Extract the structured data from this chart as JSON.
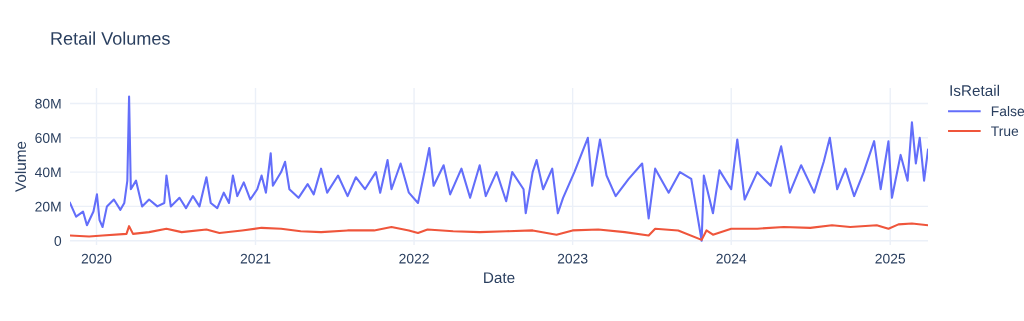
{
  "chart_data": {
    "type": "line",
    "title": "Retail Volumes",
    "xlabel": "Date",
    "ylabel": "Volume",
    "legend_title": "IsRetail",
    "legend": "top right",
    "grid": true,
    "xlim": [
      "2019-11-01",
      "2025-03-29"
    ],
    "xticks": [
      "2020",
      "2021",
      "2022",
      "2023",
      "2024",
      "2025"
    ],
    "ylim": [
      -2500000,
      89000000
    ],
    "yticks": [
      {
        "value": 0,
        "label": "0"
      },
      {
        "value": 20000000,
        "label": "20M"
      },
      {
        "value": 40000000,
        "label": "40M"
      },
      {
        "value": 60000000,
        "label": "60M"
      },
      {
        "value": 80000000,
        "label": "80M"
      }
    ],
    "series": [
      {
        "name": "False",
        "color": "#636efa",
        "x": [
          "2019-11-01",
          "2019-11-15",
          "2019-12-01",
          "2019-12-10",
          "2019-12-25",
          "2020-01-02",
          "2020-01-08",
          "2020-01-15",
          "2020-01-25",
          "2020-02-10",
          "2020-02-25",
          "2020-03-05",
          "2020-03-12",
          "2020-03-16",
          "2020-03-20",
          "2020-04-01",
          "2020-04-15",
          "2020-05-01",
          "2020-05-20",
          "2020-06-05",
          "2020-06-10",
          "2020-06-20",
          "2020-07-10",
          "2020-07-25",
          "2020-08-10",
          "2020-08-25",
          "2020-09-10",
          "2020-09-20",
          "2020-10-05",
          "2020-10-20",
          "2020-11-01",
          "2020-11-10",
          "2020-11-20",
          "2020-12-05",
          "2020-12-20",
          "2021-01-05",
          "2021-01-15",
          "2021-01-25",
          "2021-02-05",
          "2021-02-10",
          "2021-03-01",
          "2021-03-10",
          "2021-03-20",
          "2021-04-10",
          "2021-05-01",
          "2021-05-15",
          "2021-06-01",
          "2021-06-15",
          "2021-07-10",
          "2021-08-01",
          "2021-08-20",
          "2021-09-10",
          "2021-10-05",
          "2021-10-15",
          "2021-11-01",
          "2021-11-10",
          "2021-12-01",
          "2021-12-20",
          "2022-01-10",
          "2022-01-25",
          "2022-02-05",
          "2022-02-15",
          "2022-03-10",
          "2022-03-25",
          "2022-04-20",
          "2022-05-10",
          "2022-06-01",
          "2022-06-15",
          "2022-07-10",
          "2022-08-01",
          "2022-08-15",
          "2022-09-10",
          "2022-09-15",
          "2022-10-01",
          "2022-10-10",
          "2022-10-25",
          "2022-11-15",
          "2022-11-28",
          "2022-12-10",
          "2023-01-05",
          "2023-02-05",
          "2023-02-15",
          "2023-03-05",
          "2023-03-20",
          "2023-04-10",
          "2023-05-10",
          "2023-06-10",
          "2023-06-25",
          "2023-07-10",
          "2023-08-10",
          "2023-09-05",
          "2023-10-01",
          "2023-10-25",
          "2023-10-30",
          "2023-11-20",
          "2023-12-05",
          "2024-01-01",
          "2024-01-15",
          "2024-02-01",
          "2024-03-01",
          "2024-04-01",
          "2024-04-25",
          "2024-05-15",
          "2024-06-10",
          "2024-07-10",
          "2024-08-01",
          "2024-08-15",
          "2024-09-01",
          "2024-09-20",
          "2024-10-10",
          "2024-11-01",
          "2024-11-25",
          "2024-12-10",
          "2024-12-28",
          "2025-01-05",
          "2025-01-25",
          "2025-02-10",
          "2025-02-20",
          "2025-03-01",
          "2025-03-10",
          "2025-03-20",
          "2025-03-29"
        ],
        "values": [
          22000000,
          14000000,
          17000000,
          9000000,
          17000000,
          27000000,
          12000000,
          8000000,
          20000000,
          24000000,
          18000000,
          22000000,
          35000000,
          84000000,
          30000000,
          35000000,
          20000000,
          24000000,
          20000000,
          22000000,
          38000000,
          20000000,
          25000000,
          19000000,
          26000000,
          20000000,
          37000000,
          22000000,
          19000000,
          28000000,
          22000000,
          38000000,
          26000000,
          34000000,
          24000000,
          30000000,
          38000000,
          28000000,
          51000000,
          32000000,
          40000000,
          46000000,
          30000000,
          25000000,
          33000000,
          27000000,
          42000000,
          28000000,
          38000000,
          26000000,
          37000000,
          30000000,
          40000000,
          28000000,
          47000000,
          30000000,
          45000000,
          28000000,
          22000000,
          40000000,
          54000000,
          32000000,
          44000000,
          27000000,
          42000000,
          25000000,
          44000000,
          26000000,
          40000000,
          23000000,
          40000000,
          30000000,
          16000000,
          40000000,
          47000000,
          30000000,
          42000000,
          16000000,
          25000000,
          40000000,
          60000000,
          32000000,
          59000000,
          38000000,
          26000000,
          36000000,
          45000000,
          13000000,
          42000000,
          28000000,
          40000000,
          36000000,
          0,
          38000000,
          16000000,
          41000000,
          30000000,
          59000000,
          24000000,
          40000000,
          32000000,
          55000000,
          28000000,
          44000000,
          28000000,
          46000000,
          60000000,
          30000000,
          42000000,
          26000000,
          40000000,
          58000000,
          30000000,
          58000000,
          25000000,
          50000000,
          35000000,
          69000000,
          45000000,
          60000000,
          35000000,
          53000000
        ]
      },
      {
        "name": "True",
        "color": "#ef553b",
        "x": [
          "2019-11-01",
          "2019-12-15",
          "2020-01-15",
          "2020-03-10",
          "2020-03-16",
          "2020-03-25",
          "2020-05-01",
          "2020-06-10",
          "2020-07-15",
          "2020-09-10",
          "2020-10-10",
          "2020-12-01",
          "2021-01-15",
          "2021-03-01",
          "2021-04-15",
          "2021-06-01",
          "2021-08-01",
          "2021-10-01",
          "2021-11-10",
          "2021-12-20",
          "2022-01-10",
          "2022-02-01",
          "2022-04-01",
          "2022-06-01",
          "2022-08-01",
          "2022-10-01",
          "2022-11-25",
          "2023-01-01",
          "2023-03-01",
          "2023-05-01",
          "2023-06-25",
          "2023-07-10",
          "2023-09-01",
          "2023-10-25",
          "2023-11-05",
          "2023-11-20",
          "2024-01-01",
          "2024-03-01",
          "2024-05-01",
          "2024-07-01",
          "2024-08-20",
          "2024-10-01",
          "2024-12-01",
          "2024-12-28",
          "2025-01-20",
          "2025-02-20",
          "2025-03-29"
        ],
        "values": [
          3000000,
          2500000,
          3000000,
          4000000,
          8500000,
          4000000,
          5000000,
          7000000,
          5000000,
          6500000,
          4500000,
          6000000,
          7500000,
          7000000,
          5500000,
          5000000,
          6000000,
          6000000,
          8000000,
          6000000,
          4500000,
          6500000,
          5500000,
          5000000,
          5500000,
          6000000,
          3500000,
          6000000,
          6500000,
          5000000,
          3000000,
          7000000,
          6000000,
          500000,
          6000000,
          3500000,
          7000000,
          7000000,
          8000000,
          7500000,
          9000000,
          8000000,
          9000000,
          7000000,
          9500000,
          10000000,
          9000000
        ]
      }
    ]
  }
}
